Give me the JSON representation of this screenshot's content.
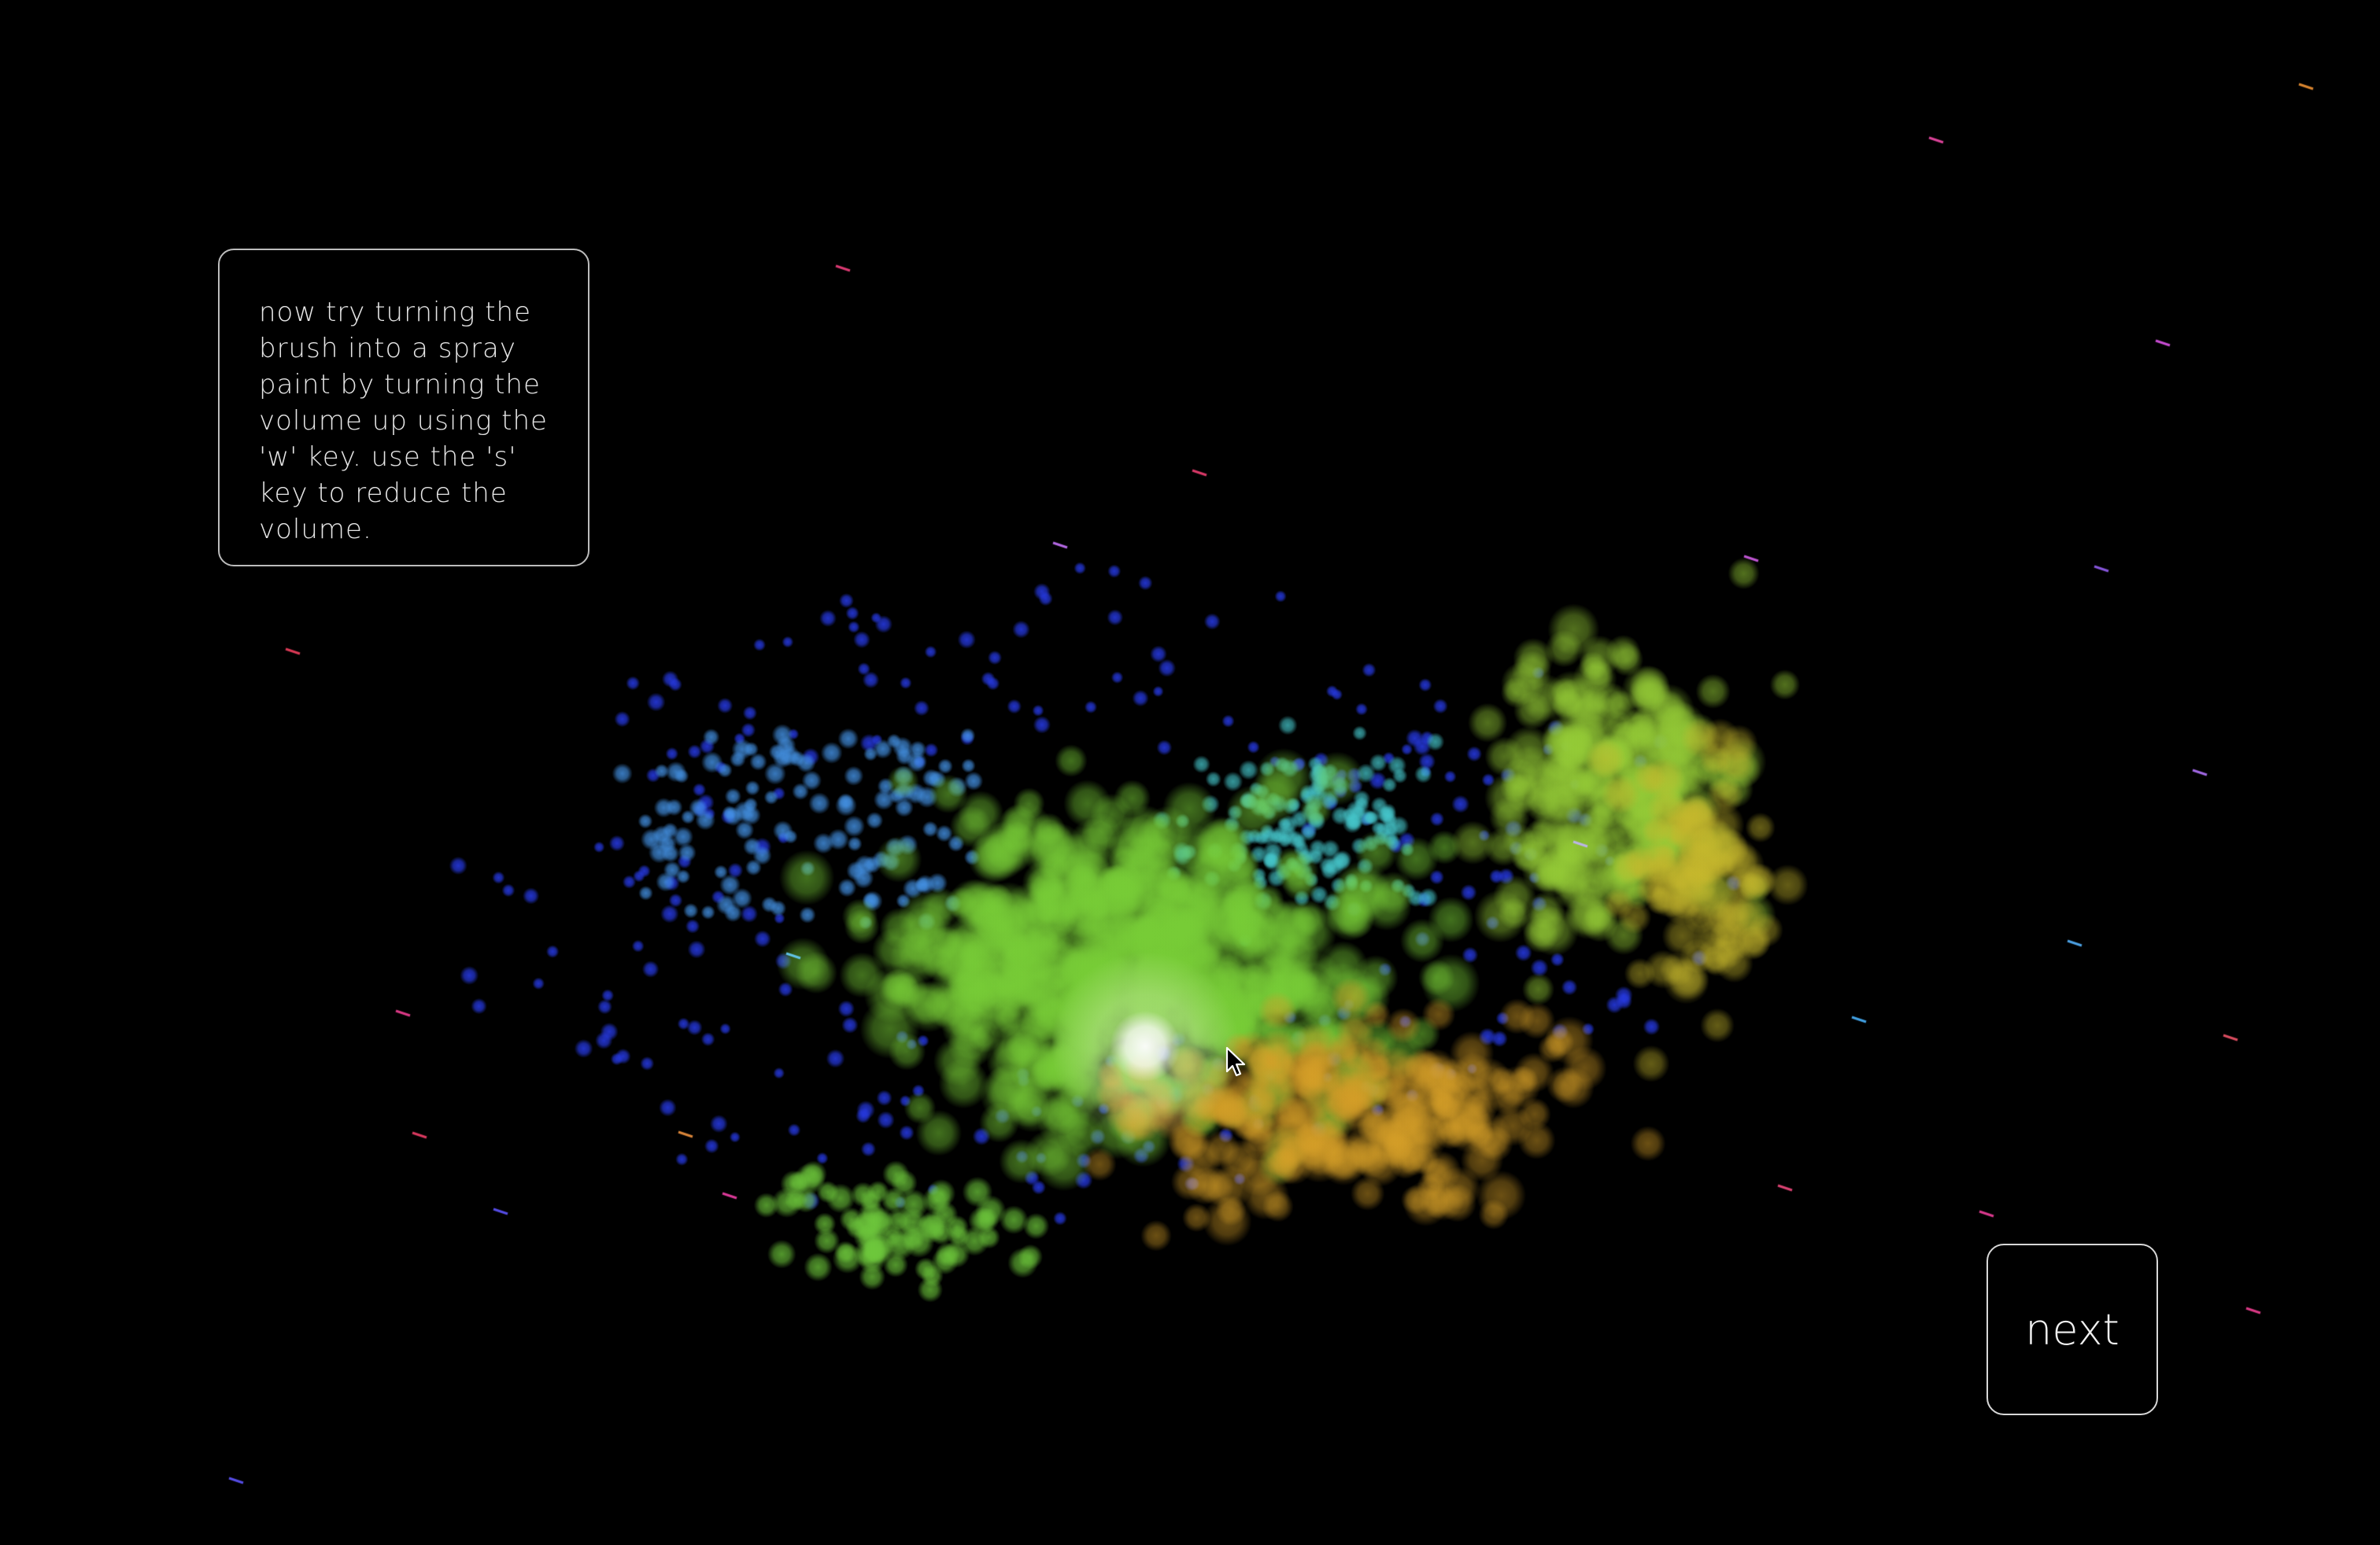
{
  "tutorial": {
    "instruction_text": "now try turning the\nbrush into a spray\npaint by turning the\nvolume up using the\n'w' key. use the 's'\nkey to reduce the\nvolume."
  },
  "navigation": {
    "next_label": "next"
  },
  "canvas": {
    "background_color": "#000000",
    "particle_colors": [
      "#7ed33a",
      "#a8c238",
      "#d6a52a",
      "#3ec0c8",
      "#2a3fd8",
      "#3a6ff0",
      "#ffffff"
    ]
  },
  "cursor": {
    "icon": "arrow-pointer-icon"
  }
}
